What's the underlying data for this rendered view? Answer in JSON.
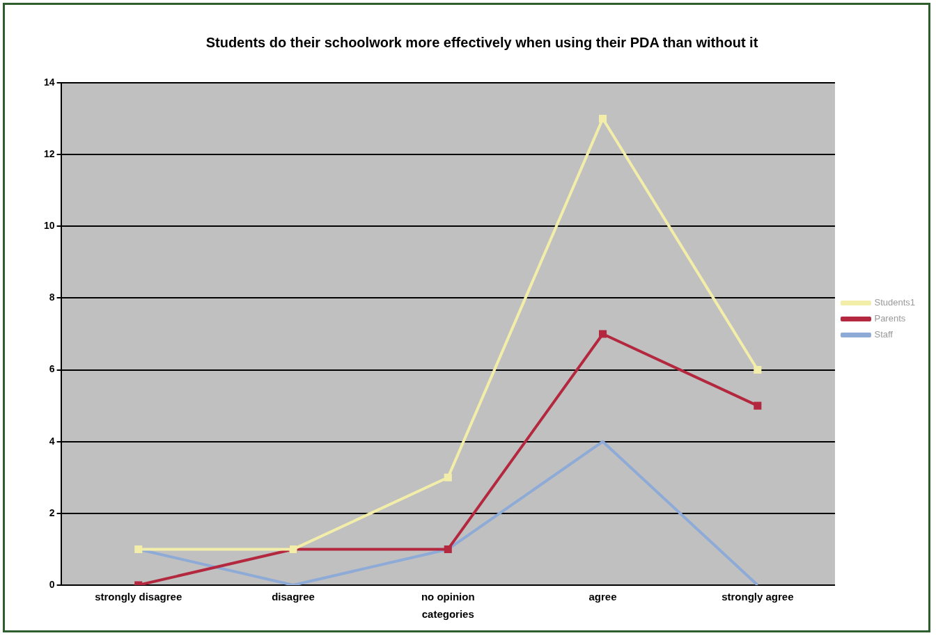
{
  "chart_data": {
    "type": "line",
    "title": "Students do their schoolwork more effectively when using their PDA than without it",
    "xlabel": "categories",
    "categories": [
      "strongly disagree",
      "disagree",
      "no opinion",
      "agree",
      "strongly agree"
    ],
    "series": [
      {
        "name": "Staff",
        "color": "#8eaad6",
        "values": [
          1,
          0,
          1,
          4,
          0
        ],
        "marker": "none"
      },
      {
        "name": "Parents",
        "color": "#b3283e",
        "values": [
          0,
          1,
          1,
          7,
          5
        ],
        "marker": "square"
      },
      {
        "name": "Students1",
        "color": "#f2eeaa",
        "values": [
          1,
          1,
          3,
          13,
          6
        ],
        "marker": "square"
      }
    ],
    "ylim": [
      0,
      14
    ],
    "yticks": [
      0,
      2,
      4,
      6,
      8,
      10,
      12,
      14
    ],
    "grid": "y",
    "legend": "right",
    "line_style": "solid"
  }
}
